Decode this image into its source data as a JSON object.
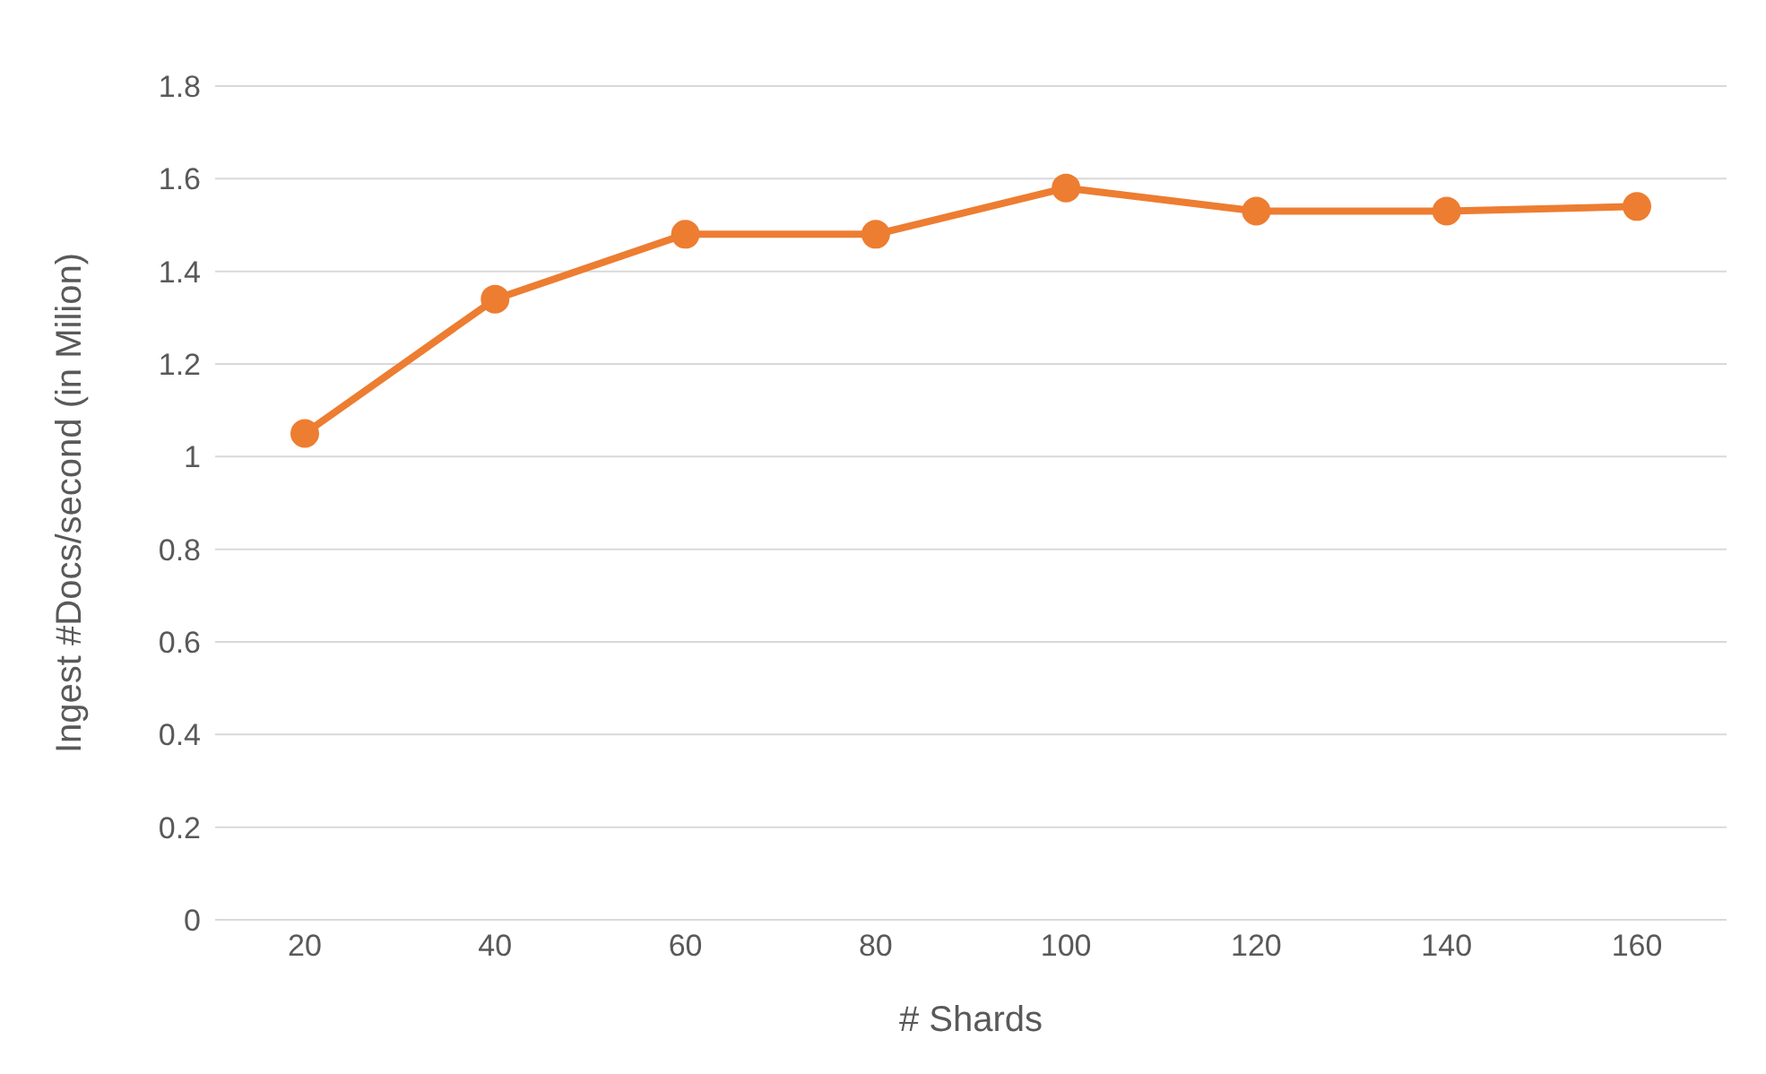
{
  "chart_data": {
    "type": "line",
    "xlabel": "# Shards",
    "ylabel": "Ingest #Docs/second (in Milion)",
    "categories": [
      "20",
      "40",
      "60",
      "80",
      "100",
      "120",
      "140",
      "160"
    ],
    "series": [
      {
        "color": "#ed7d31",
        "values": [
          1.05,
          1.34,
          1.48,
          1.48,
          1.58,
          1.53,
          1.53,
          1.54
        ]
      }
    ],
    "ylim": [
      0,
      1.8
    ],
    "yticks": [
      0,
      {
        "value": 0.2,
        "label": "0.2"
      },
      {
        "value": 0.4,
        "label": "0.4"
      },
      {
        "value": 0.6,
        "label": "0.6"
      },
      {
        "value": 0.8,
        "label": "0.8"
      },
      1,
      {
        "value": 1.2,
        "label": "1.2"
      },
      {
        "value": 1.4,
        "label": "1.4"
      },
      {
        "value": 1.6,
        "label": "1.6"
      },
      {
        "value": 1.8,
        "label": "1.8"
      }
    ],
    "grid": "y",
    "marker": "circle",
    "legend": false
  }
}
